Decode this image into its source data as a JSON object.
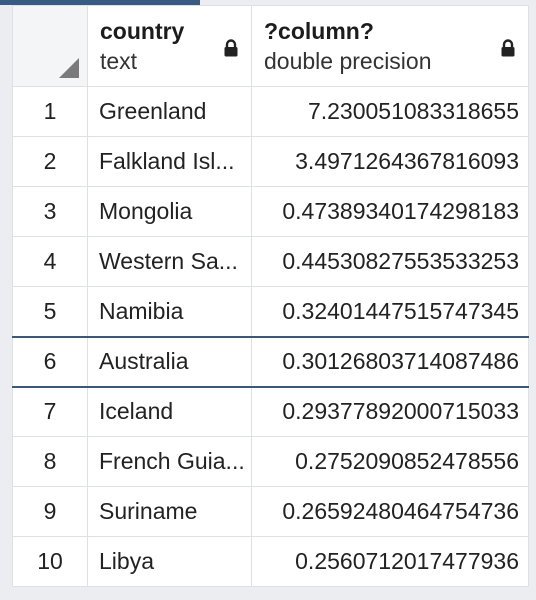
{
  "columns": [
    {
      "name": "country",
      "type": "text"
    },
    {
      "name": "?column?",
      "type": "double precision"
    }
  ],
  "rows": [
    {
      "num": "1",
      "country": "Greenland",
      "value": "7.230051083318655"
    },
    {
      "num": "2",
      "country": "Falkland Isl...",
      "value": "3.4971264367816093"
    },
    {
      "num": "3",
      "country": "Mongolia",
      "value": "0.47389340174298183"
    },
    {
      "num": "4",
      "country": "Western Sa...",
      "value": "0.44530827553533253"
    },
    {
      "num": "5",
      "country": "Namibia",
      "value": "0.32401447515747345"
    },
    {
      "num": "6",
      "country": "Australia",
      "value": "0.30126803714087486"
    },
    {
      "num": "7",
      "country": "Iceland",
      "value": "0.29377892000715033"
    },
    {
      "num": "8",
      "country": "French Guia...",
      "value": "0.2752090852478556"
    },
    {
      "num": "9",
      "country": "Suriname",
      "value": "0.26592480464754736"
    },
    {
      "num": "10",
      "country": "Libya",
      "value": "0.2560712017477936"
    }
  ],
  "selected_row": "6"
}
